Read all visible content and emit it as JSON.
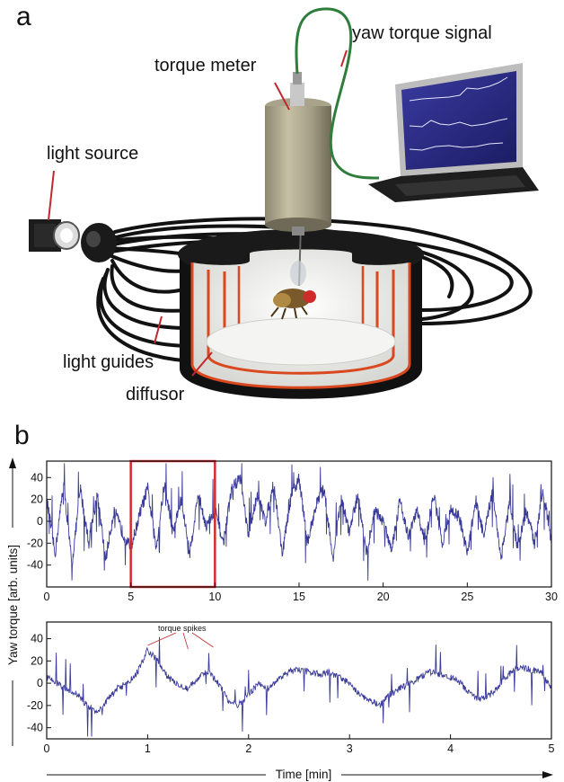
{
  "panels": {
    "a": "a",
    "b": "b"
  },
  "labels": {
    "yaw_torque_signal": "yaw torque signal",
    "torque_meter": "torque meter",
    "light_source": "light source",
    "light_guides": "light guides",
    "diffusor": "diffusor"
  },
  "colors": {
    "trace": "#3a3a98",
    "highlight": "#d42a2a",
    "cable": "#2f7d3c",
    "callout_line": "#c0282d",
    "heat_panel": "#d9481f"
  },
  "chart_data": [
    {
      "type": "line",
      "xlim": [
        0,
        30
      ],
      "ylim": [
        -60,
        55
      ],
      "xticks": [
        0,
        5,
        10,
        15,
        20,
        25,
        30
      ],
      "yticks": [
        40,
        20,
        0,
        -20,
        -40
      ],
      "highlight_range": [
        5,
        10
      ],
      "series": [
        {
          "x": [
            0,
            0.5,
            1,
            1.5,
            2,
            2.5,
            3,
            3.5,
            4,
            4.5,
            5,
            5.5,
            6,
            6.5,
            7,
            7.5,
            8,
            8.5,
            9,
            9.5,
            10,
            10.5,
            11,
            11.5,
            12,
            12.5,
            13,
            13.5,
            14,
            14.5,
            15,
            15.5,
            16,
            16.5,
            17,
            17.5,
            18,
            18.5,
            19,
            19.5,
            20,
            20.5,
            21,
            21.5,
            22,
            22.5,
            23,
            23.5,
            24,
            24.5,
            25,
            25.5,
            26,
            26.5,
            27,
            27.5,
            28,
            28.5,
            29,
            29.5,
            30
          ],
          "y": [
            20,
            -30,
            35,
            -40,
            30,
            -20,
            25,
            -35,
            10,
            -10,
            -25,
            5,
            30,
            -25,
            35,
            -10,
            20,
            -30,
            25,
            -5,
            10,
            -20,
            30,
            40,
            -15,
            25,
            0,
            35,
            -30,
            20,
            40,
            -20,
            15,
            30,
            -35,
            20,
            -10,
            25,
            -30,
            10,
            0,
            -25,
            20,
            -15,
            10,
            -20,
            25,
            -20,
            10,
            5,
            -30,
            20,
            -15,
            30,
            -35,
            15,
            -25,
            10,
            -20,
            30,
            -20
          ]
        }
      ]
    },
    {
      "type": "line",
      "xlim": [
        0,
        5
      ],
      "ylim": [
        -50,
        55
      ],
      "xticks": [
        0,
        1,
        2,
        3,
        4,
        5
      ],
      "yticks": [
        40,
        20,
        0,
        -20,
        -40
      ],
      "ylabel": "Yaw torque [arb. units]",
      "xlabel": "Time [min]",
      "annotation": "torque spikes",
      "series": [
        {
          "x": [
            0,
            0.1,
            0.2,
            0.3,
            0.4,
            0.5,
            0.6,
            0.7,
            0.8,
            0.9,
            1.0,
            1.1,
            1.2,
            1.3,
            1.4,
            1.5,
            1.6,
            1.7,
            1.8,
            1.9,
            2.0,
            2.1,
            2.2,
            2.3,
            2.4,
            2.5,
            2.6,
            2.7,
            2.8,
            2.9,
            3.0,
            3.1,
            3.2,
            3.3,
            3.4,
            3.5,
            3.6,
            3.7,
            3.8,
            3.9,
            4.0,
            4.1,
            4.2,
            4.3,
            4.4,
            4.5,
            4.6,
            4.7,
            4.8,
            4.9,
            5.0
          ],
          "y": [
            5,
            0,
            -5,
            -10,
            -20,
            -25,
            -15,
            -5,
            0,
            10,
            30,
            20,
            5,
            0,
            -5,
            5,
            10,
            0,
            -15,
            -20,
            -10,
            0,
            -5,
            5,
            10,
            12,
            10,
            8,
            10,
            5,
            0,
            -10,
            -15,
            -20,
            -10,
            -5,
            0,
            5,
            10,
            8,
            5,
            0,
            -10,
            -15,
            -10,
            0,
            10,
            15,
            12,
            10,
            -5
          ]
        }
      ]
    }
  ]
}
